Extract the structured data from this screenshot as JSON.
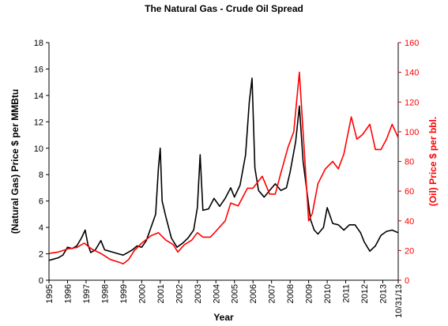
{
  "chart_data": {
    "type": "line",
    "title": "The Natural Gas - Crude Oil Spread",
    "xlabel": "Year",
    "ylabel_left": "(Natural Gas) Price $ per MMBtu",
    "ylabel_right": "(Oil) Price $ per bbl.",
    "ylim_left": [
      0,
      18
    ],
    "ylim_right": [
      0,
      160
    ],
    "xlim": [
      1995.0,
      2013.83
    ],
    "yticks_left": [
      0,
      2,
      4,
      6,
      8,
      10,
      12,
      14,
      16,
      18
    ],
    "yticks_right": [
      0,
      20,
      40,
      60,
      80,
      100,
      120,
      140,
      160
    ],
    "x_tick_labels": [
      "1995",
      "1996",
      "1997",
      "1998",
      "1999",
      "2000",
      "2001",
      "2002",
      "2003",
      "2004",
      "2005",
      "2006",
      "2007",
      "2008",
      "2009",
      "2010",
      "2011",
      "2012",
      "2013",
      "10/31/13"
    ],
    "grid": false,
    "series": [
      {
        "axis": "left",
        "color": "#000000",
        "x": [
          1995.0,
          1995.25,
          1995.5,
          1995.75,
          1996.0,
          1996.25,
          1996.5,
          1996.75,
          1996.95,
          1997.1,
          1997.25,
          1997.5,
          1997.8,
          1998.0,
          1998.25,
          1998.5,
          1998.75,
          1999.0,
          1999.25,
          1999.5,
          1999.75,
          2000.0,
          2000.25,
          2000.5,
          2000.75,
          2000.9,
          2001.0,
          2001.1,
          2001.3,
          2001.6,
          2001.9,
          2002.2,
          2002.5,
          2002.8,
          2003.0,
          2003.15,
          2003.3,
          2003.6,
          2003.9,
          2004.2,
          2004.5,
          2004.8,
          2005.0,
          2005.3,
          2005.6,
          2005.8,
          2005.95,
          2006.1,
          2006.3,
          2006.6,
          2006.9,
          2007.2,
          2007.5,
          2007.8,
          2008.0,
          2008.3,
          2008.5,
          2008.7,
          2008.9,
          2009.1,
          2009.3,
          2009.5,
          2009.8,
          2010.0,
          2010.3,
          2010.6,
          2010.9,
          2011.2,
          2011.5,
          2011.8,
          2012.0,
          2012.3,
          2012.6,
          2012.9,
          2013.2,
          2013.5,
          2013.83
        ],
        "y": [
          1.5,
          1.6,
          1.7,
          1.9,
          2.5,
          2.4,
          2.6,
          3.2,
          3.8,
          2.7,
          2.1,
          2.3,
          3.0,
          2.3,
          2.2,
          2.1,
          2.0,
          1.9,
          2.1,
          2.3,
          2.6,
          2.5,
          3.0,
          4.0,
          5.0,
          8.5,
          10.0,
          6.0,
          4.8,
          3.2,
          2.5,
          2.8,
          3.2,
          3.8,
          5.5,
          9.5,
          5.3,
          5.4,
          6.2,
          5.6,
          6.2,
          7.0,
          6.3,
          7.2,
          9.5,
          13.5,
          15.3,
          8.5,
          6.8,
          6.3,
          6.8,
          7.3,
          6.8,
          7.0,
          8.2,
          10.5,
          13.2,
          9.0,
          6.8,
          4.6,
          3.8,
          3.5,
          4.0,
          5.5,
          4.3,
          4.2,
          3.8,
          4.2,
          4.2,
          3.6,
          2.9,
          2.2,
          2.6,
          3.4,
          3.7,
          3.8,
          3.6
        ]
      },
      {
        "axis": "right",
        "color": "#ff0000",
        "x": [
          1995.0,
          1995.5,
          1996.0,
          1996.5,
          1996.9,
          1997.3,
          1997.8,
          1998.3,
          1998.8,
          1999.0,
          1999.3,
          1999.6,
          2000.0,
          2000.5,
          2000.9,
          2001.3,
          2001.7,
          2001.95,
          2002.3,
          2002.7,
          2003.0,
          2003.3,
          2003.7,
          2004.0,
          2004.5,
          2004.8,
          2005.2,
          2005.7,
          2006.0,
          2006.5,
          2006.9,
          2007.2,
          2007.5,
          2007.9,
          2008.2,
          2008.5,
          2008.7,
          2008.9,
          2009.0,
          2009.2,
          2009.5,
          2009.9,
          2010.3,
          2010.6,
          2010.9,
          2011.3,
          2011.6,
          2011.9,
          2012.3,
          2012.6,
          2012.9,
          2013.2,
          2013.5,
          2013.83
        ],
        "y": [
          18,
          19,
          21,
          22,
          25,
          21,
          18,
          14,
          12,
          11,
          14,
          20,
          25,
          30,
          32,
          27,
          24,
          19,
          24,
          27,
          32,
          29,
          29,
          33,
          40,
          52,
          50,
          62,
          62,
          70,
          58,
          58,
          72,
          90,
          100,
          140,
          100,
          60,
          40,
          45,
          65,
          75,
          80,
          75,
          85,
          110,
          95,
          98,
          105,
          88,
          88,
          95,
          105,
          96
        ]
      }
    ]
  }
}
